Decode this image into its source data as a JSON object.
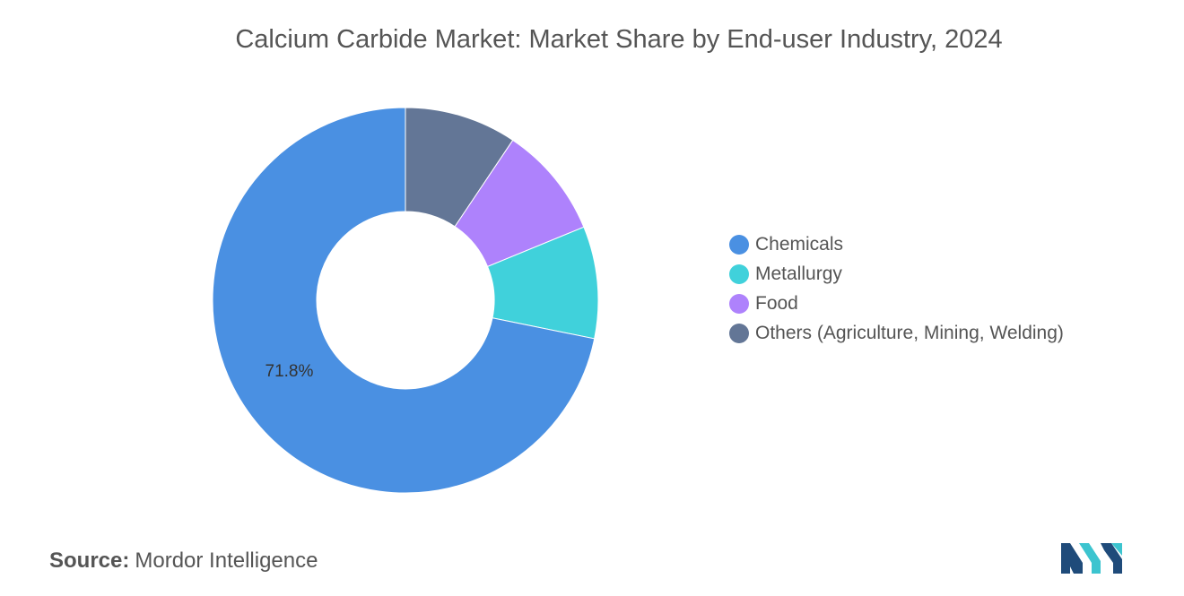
{
  "chart_data": {
    "type": "pie",
    "donut": true,
    "title": "Calcium Carbide Market: Market Share by End-user Industry, 2024",
    "categories": [
      "Chemicals",
      "Metallurgy",
      "Food",
      "Others (Agriculture, Mining, Welding)"
    ],
    "values": [
      71.8,
      9.4,
      9.4,
      9.4
    ],
    "colors": [
      "#4a90e2",
      "#40d1db",
      "#ae82fc",
      "#637696"
    ],
    "data_labels": [
      "71.8%",
      "",
      "",
      ""
    ],
    "legend_position": "right"
  },
  "source": {
    "label": "Source:",
    "text": "Mordor Intelligence"
  },
  "logo": {
    "icon": "mordor-intelligence-logo-icon",
    "colors": [
      "#1f4b7a",
      "#3cc4cf"
    ]
  }
}
